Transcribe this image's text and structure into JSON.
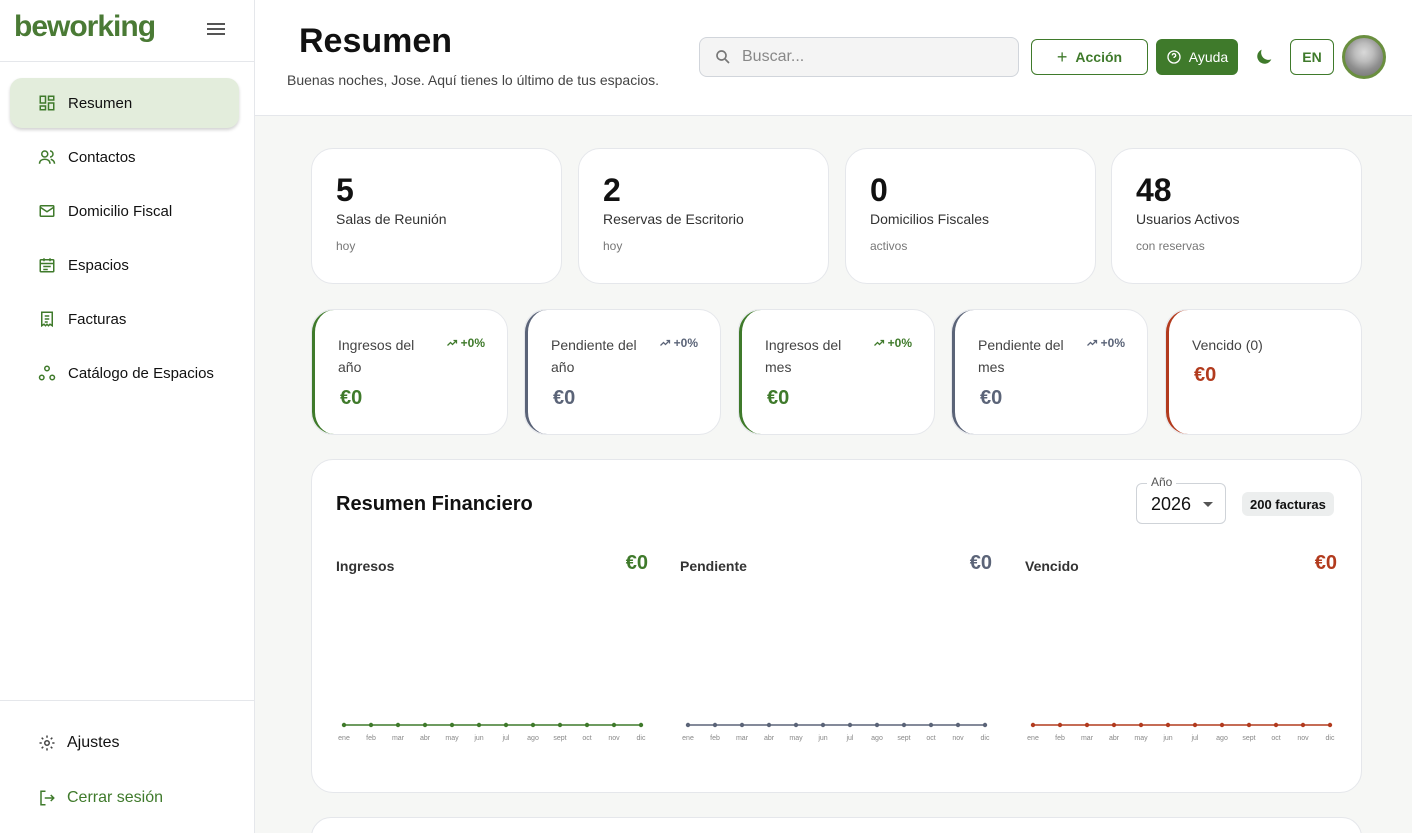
{
  "brand": {
    "logo": "beworking",
    "accent": "#4a7a35"
  },
  "nav": {
    "items": [
      {
        "label": "Resumen",
        "icon": "dashboard-icon",
        "active": true
      },
      {
        "label": "Contactos",
        "icon": "users-icon"
      },
      {
        "label": "Domicilio Fiscal",
        "icon": "mail-icon"
      },
      {
        "label": "Espacios",
        "icon": "calendar-icon"
      },
      {
        "label": "Facturas",
        "icon": "receipt-icon"
      },
      {
        "label": "Catálogo de Espacios",
        "icon": "catalog-icon"
      }
    ],
    "settings": "Ajustes",
    "logout": "Cerrar sesión"
  },
  "header": {
    "title": "Resumen",
    "greeting": "Buenas noches, Jose. Aquí tienes lo último de tus espacios.",
    "search_placeholder": "Buscar...",
    "accion": "Acción",
    "ayuda": "Ayuda",
    "lang": "EN"
  },
  "stats": [
    {
      "value": "5",
      "label": "Salas de Reunión",
      "sub": "hoy"
    },
    {
      "value": "2",
      "label": "Reservas de Escritorio",
      "sub": "hoy"
    },
    {
      "value": "0",
      "label": "Domicilios Fiscales",
      "sub": "activos"
    },
    {
      "value": "48",
      "label": "Usuarios Activos",
      "sub": "con reservas"
    }
  ],
  "finance": [
    {
      "label": "Ingresos del año",
      "trend": "+0%",
      "value": "€0",
      "color": "#3f7a2b"
    },
    {
      "label": "Pendiente del año",
      "trend": "+0%",
      "value": "€0",
      "color": "#5b6478"
    },
    {
      "label": "Ingresos del mes",
      "trend": "+0%",
      "value": "€0",
      "color": "#3f7a2b"
    },
    {
      "label": "Pendiente del mes",
      "trend": "+0%",
      "value": "€0",
      "color": "#5b6478"
    },
    {
      "label": "Vencido (0)",
      "trend": "",
      "value": "€0",
      "color": "#b23b1e"
    }
  ],
  "summary": {
    "title": "Resumen Financiero",
    "year_label": "Año",
    "year": "2026",
    "invoices": "200 facturas"
  },
  "chart_data": [
    {
      "type": "line",
      "title": "Ingresos",
      "total": "€0",
      "color": "#3f7a2b",
      "categories": [
        "ene",
        "feb",
        "mar",
        "abr",
        "may",
        "jun",
        "jul",
        "ago",
        "sept",
        "oct",
        "nov",
        "dic"
      ],
      "values": [
        0,
        0,
        0,
        0,
        0,
        0,
        0,
        0,
        0,
        0,
        0,
        0
      ]
    },
    {
      "type": "line",
      "title": "Pendiente",
      "total": "€0",
      "color": "#5b6478",
      "categories": [
        "ene",
        "feb",
        "mar",
        "abr",
        "may",
        "jun",
        "jul",
        "ago",
        "sept",
        "oct",
        "nov",
        "dic"
      ],
      "values": [
        0,
        0,
        0,
        0,
        0,
        0,
        0,
        0,
        0,
        0,
        0,
        0
      ]
    },
    {
      "type": "line",
      "title": "Vencido",
      "total": "€0",
      "color": "#b23b1e",
      "categories": [
        "ene",
        "feb",
        "mar",
        "abr",
        "may",
        "jun",
        "jul",
        "ago",
        "sept",
        "oct",
        "nov",
        "dic"
      ],
      "values": [
        0,
        0,
        0,
        0,
        0,
        0,
        0,
        0,
        0,
        0,
        0,
        0
      ]
    }
  ]
}
